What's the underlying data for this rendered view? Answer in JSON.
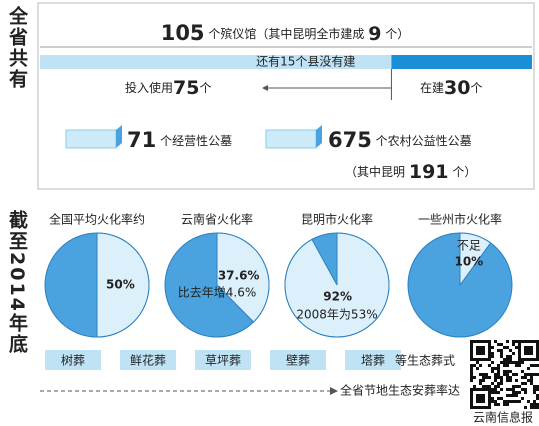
{
  "side_labels": [
    "全省共有",
    "截至2014年底"
  ],
  "funeral_homes": {
    "total": 105,
    "total_text": "个殡仪馆（其中昆明全市建成",
    "kunming": 9,
    "kunming_suffix": "个）",
    "unbuilt_note": "还有15个县没有建",
    "in_use_label": "投入使用",
    "in_use": 75,
    "in_use_unit": "个",
    "building_label": "在建",
    "building": 30,
    "building_unit": "个"
  },
  "cemeteries": {
    "commercial": 71,
    "commercial_label": "个经营性公墓",
    "rural": 675,
    "rural_label": "个农村公益性公墓",
    "kunming_prefix": "（其中昆明",
    "kunming": 191,
    "kunming_suffix": "个）"
  },
  "pies": [
    {
      "title": "全国平均火化率约",
      "value": 50,
      "value_label": "50%"
    },
    {
      "title": "云南省火化率",
      "value": 37.6,
      "value_label": "37.6%",
      "note": "比去年增4.6%"
    },
    {
      "title": "昆明市火化率",
      "value": 92,
      "value_label": "92%",
      "note": "2008年为53%"
    },
    {
      "title": "一些州市火化率",
      "value": 10,
      "value_label": "10%",
      "prefix": "不足"
    }
  ],
  "burial_types": [
    "树葬",
    "鲜花葬",
    "草坪葬",
    "壁葬",
    "塔葬"
  ],
  "burial_suffix": "等生态葬式",
  "arrow_text": "全省节地生态安葬率达",
  "source": "云南信息报"
}
